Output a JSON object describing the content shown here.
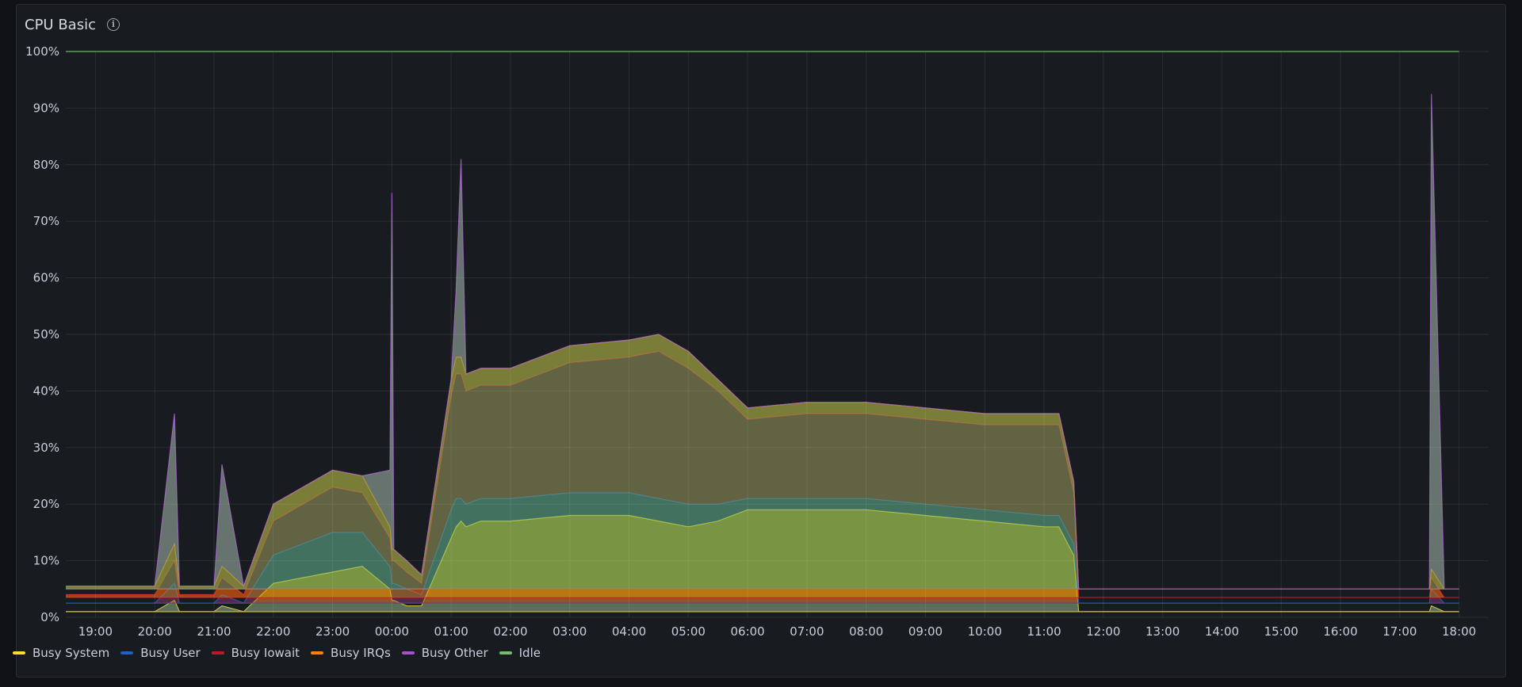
{
  "panel": {
    "title": "CPU Basic",
    "info_icon": "info-icon"
  },
  "chart_data": {
    "type": "area",
    "stacked": true,
    "title": "CPU Basic",
    "xlabel": "",
    "ylabel": "",
    "ylim": [
      0,
      100
    ],
    "y_ticks": [
      "0%",
      "10%",
      "20%",
      "30%",
      "40%",
      "50%",
      "60%",
      "70%",
      "80%",
      "90%",
      "100%"
    ],
    "x_ticks": [
      "19:00",
      "20:00",
      "21:00",
      "22:00",
      "23:00",
      "00:00",
      "01:00",
      "02:00",
      "03:00",
      "04:00",
      "05:00",
      "06:00",
      "07:00",
      "08:00",
      "09:00",
      "10:00",
      "11:00",
      "12:00",
      "13:00",
      "14:00",
      "15:00",
      "16:00",
      "17:00",
      "18:00"
    ],
    "grid": true,
    "legend_position": "bottom-left",
    "x": [
      "18:30",
      "19:00",
      "20:00",
      "20:20",
      "20:25",
      "21:00",
      "21:08",
      "21:30",
      "22:00",
      "22:30",
      "23:00",
      "23:30",
      "23:58",
      "00:00",
      "00:02",
      "00:15",
      "00:30",
      "01:00",
      "01:05",
      "01:10",
      "01:15",
      "01:30",
      "02:00",
      "03:00",
      "04:00",
      "04:30",
      "05:00",
      "05:30",
      "06:00",
      "07:00",
      "08:00",
      "09:00",
      "10:00",
      "11:00",
      "11:15",
      "11:30",
      "11:35",
      "12:00",
      "13:00",
      "14:00",
      "15:00",
      "16:00",
      "17:00",
      "17:30",
      "17:32",
      "17:45",
      "18:00",
      "18:30"
    ],
    "series": [
      {
        "name": "Busy System",
        "color": "#fade2a",
        "values": [
          1,
          1,
          1,
          3,
          1,
          1,
          2,
          1,
          6,
          7,
          8,
          9,
          5,
          3,
          3,
          2,
          2,
          14,
          16,
          17,
          16,
          17,
          17,
          18,
          18,
          17,
          16,
          17,
          19,
          19,
          19,
          18,
          17,
          16,
          16,
          11,
          1,
          1,
          1,
          1,
          1,
          1,
          1,
          1,
          2,
          1,
          1,
          1
        ]
      },
      {
        "name": "Busy User",
        "color": "#1f60c4",
        "values": [
          1.5,
          1.5,
          1.5,
          3,
          1.5,
          1.5,
          2,
          1.5,
          5,
          6,
          7,
          6,
          4,
          3,
          3,
          3,
          2,
          5,
          5,
          4,
          4,
          4,
          4,
          4,
          4,
          4,
          4,
          3,
          2,
          2,
          2,
          2,
          2,
          2,
          2,
          2,
          1.5,
          1.5,
          1.5,
          1.5,
          1.5,
          1.5,
          1.5,
          1.5,
          3,
          1.5,
          1.5,
          1.5
        ]
      },
      {
        "name": "Busy Iowait",
        "color": "#c4162a",
        "values": [
          1.5,
          1.5,
          1.5,
          4,
          1.5,
          1.5,
          3,
          1.5,
          6,
          7,
          8,
          7,
          5,
          4,
          4,
          3,
          2,
          20,
          22,
          22,
          20,
          20,
          20,
          23,
          24,
          26,
          24,
          20,
          14,
          15,
          15,
          15,
          15,
          16,
          16,
          9,
          1,
          1,
          1,
          1,
          1,
          1,
          1,
          1,
          2,
          1,
          1,
          1
        ]
      },
      {
        "name": "Busy IRQs",
        "color": "#ff7f00",
        "values": [
          1.5,
          1.5,
          1.5,
          3,
          1.5,
          1.5,
          2,
          1.5,
          3,
          3,
          3,
          3,
          2,
          2,
          2,
          2,
          1.5,
          3,
          3,
          3,
          3,
          3,
          3,
          3,
          3,
          3,
          3,
          2,
          2,
          2,
          2,
          2,
          2,
          2,
          2,
          2,
          1.5,
          1.5,
          1.5,
          1.5,
          1.5,
          1.5,
          1.5,
          1.5,
          1.5,
          1.5,
          1.5,
          1.5
        ]
      },
      {
        "name": "Busy Other",
        "color": "#a352cc",
        "values": [
          0,
          0,
          0,
          23,
          0,
          0,
          18,
          0,
          0,
          0,
          0,
          0,
          10,
          63,
          0,
          0,
          0,
          0,
          12,
          35,
          0,
          0,
          0,
          0,
          0,
          0,
          0,
          0,
          0,
          0,
          0,
          0,
          0,
          0,
          0,
          0,
          0,
          0,
          0,
          0,
          0,
          0,
          0,
          0,
          84,
          0,
          0,
          0
        ]
      },
      {
        "name": "Idle",
        "color": "#73bf69",
        "values": [
          94.5,
          94.5,
          94.5,
          64,
          94.5,
          94.5,
          73,
          94.5,
          80,
          77,
          74,
          75,
          74,
          25,
          88,
          90,
          92.5,
          58,
          42,
          19,
          57,
          56,
          56,
          52,
          51,
          50,
          53,
          58,
          63,
          62,
          62,
          63,
          64,
          64,
          64,
          76,
          95,
          95,
          95,
          95,
          95,
          95,
          95,
          95,
          7.5,
          95,
          95,
          95
        ]
      }
    ]
  },
  "legend": [
    {
      "label": "Busy System",
      "color": "#fade2a"
    },
    {
      "label": "Busy User",
      "color": "#1f60c4"
    },
    {
      "label": "Busy Iowait",
      "color": "#c4162a"
    },
    {
      "label": "Busy IRQs",
      "color": "#ff7f00"
    },
    {
      "label": "Busy Other",
      "color": "#a352cc"
    },
    {
      "label": "Idle",
      "color": "#73bf69"
    }
  ]
}
